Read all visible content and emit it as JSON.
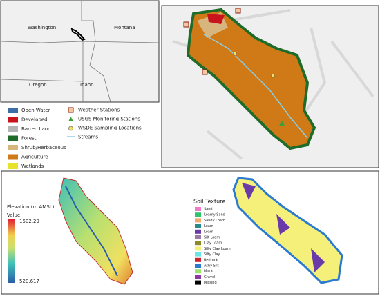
{
  "inset_map": {
    "labels": [
      "Washington",
      "Montana",
      "Oregon",
      "Idaho"
    ]
  },
  "landcover_legend": {
    "items": [
      {
        "name": "Open Water",
        "color": "#3a6fa8"
      },
      {
        "name": "Developed",
        "color": "#c8141c"
      },
      {
        "name": "Barren Land",
        "color": "#b4b4b4"
      },
      {
        "name": "Forest",
        "color": "#1f6b2a"
      },
      {
        "name": "Shrub/Herbaceous",
        "color": "#d8b57c"
      },
      {
        "name": "Agriculture",
        "color": "#cf7a17"
      },
      {
        "name": "Wetlands",
        "color": "#e8e22a"
      }
    ]
  },
  "station_legend": {
    "items": [
      "Weather Stations",
      "USGS Monitoring Stations",
      "WSDE Sampling Locations",
      "Streams"
    ]
  },
  "elevation_legend": {
    "title": "Elevation (m AMSL)",
    "subtitle": "Value",
    "max": 1502.29,
    "min": 520.617
  },
  "soil_legend": {
    "title": "Soil Texture",
    "items": [
      {
        "name": "Sand",
        "color": "#f07ac8"
      },
      {
        "name": "Loamy Sand",
        "color": "#2ec46a"
      },
      {
        "name": "Sandy Loam",
        "color": "#f2a86a"
      },
      {
        "name": "Loam",
        "color": "#2a8a8a"
      },
      {
        "name": "Loam",
        "color": "#6a3aa8"
      },
      {
        "name": "Silt Loam",
        "color": "#9a7aa0"
      },
      {
        "name": "Clay Loam",
        "color": "#8a8a2a"
      },
      {
        "name": "Silty Clay Loam",
        "color": "#f4f07a"
      },
      {
        "name": "Silty Clay",
        "color": "#6ae6e6"
      },
      {
        "name": "Bedrock",
        "color": "#d0202a"
      },
      {
        "name": "Ashy Silt",
        "color": "#2a7ad0"
      },
      {
        "name": "Muck",
        "color": "#9ae66a"
      },
      {
        "name": "Gravel",
        "color": "#8a3aa0"
      },
      {
        "name": "Missing",
        "color": "#000000"
      }
    ]
  }
}
